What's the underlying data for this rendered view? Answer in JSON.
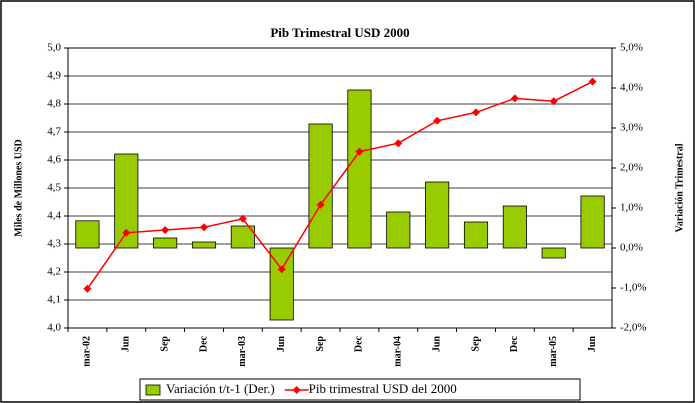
{
  "chart_data": {
    "type": "bar_line",
    "title": "Pib Trimestral USD 2000",
    "y_label": "Miles de Millones USD",
    "y2_label": "Variación Trimestral",
    "categories": [
      "mar-02",
      "Jun",
      "Sep",
      "Dec",
      "mar-03",
      "Jun",
      "Sep",
      "Dec",
      "mar-04",
      "Jun",
      "Sep",
      "Dec",
      "mar-05",
      "Jun"
    ],
    "series": [
      {
        "name": "Variación t/t-1 (Der.)",
        "type": "bar",
        "axis": "y2",
        "color": "#99cc00",
        "values": [
          0.68,
          2.35,
          0.25,
          0.15,
          0.55,
          -1.8,
          3.1,
          3.95,
          0.9,
          1.65,
          0.65,
          1.05,
          -0.25,
          1.3
        ]
      },
      {
        "name": "Pib trimestral USD del 2000",
        "type": "line",
        "axis": "y",
        "color": "#ff0000",
        "values": [
          4.14,
          4.34,
          4.35,
          4.36,
          4.39,
          4.21,
          4.44,
          4.63,
          4.66,
          4.74,
          4.77,
          4.82,
          4.81,
          4.88
        ]
      }
    ],
    "ylim": [
      4.0,
      5.0
    ],
    "yticks": [
      {
        "value": 4.0,
        "label": "4,0"
      },
      {
        "value": 4.1,
        "label": "4,1"
      },
      {
        "value": 4.2,
        "label": "4,2"
      },
      {
        "value": 4.3,
        "label": "4,3"
      },
      {
        "value": 4.4,
        "label": "4,4"
      },
      {
        "value": 4.5,
        "label": "4,5"
      },
      {
        "value": 4.6,
        "label": "4,6"
      },
      {
        "value": 4.7,
        "label": "4,7"
      },
      {
        "value": 4.8,
        "label": "4,8"
      },
      {
        "value": 4.9,
        "label": "4,9"
      },
      {
        "value": 5.0,
        "label": "5,0"
      }
    ],
    "y2lim": [
      -2.0,
      5.0
    ],
    "y2ticks": [
      {
        "value": -2.0,
        "label": "-2,0%"
      },
      {
        "value": -1.0,
        "label": "-1,0%"
      },
      {
        "value": 0.0,
        "label": "0,0%"
      },
      {
        "value": 1.0,
        "label": "1,0%"
      },
      {
        "value": 2.0,
        "label": "2,0%"
      },
      {
        "value": 3.0,
        "label": "3,0%"
      },
      {
        "value": 4.0,
        "label": "4,0%"
      },
      {
        "value": 5.0,
        "label": "5,0%"
      }
    ],
    "grid": true,
    "legend": "bottom"
  }
}
